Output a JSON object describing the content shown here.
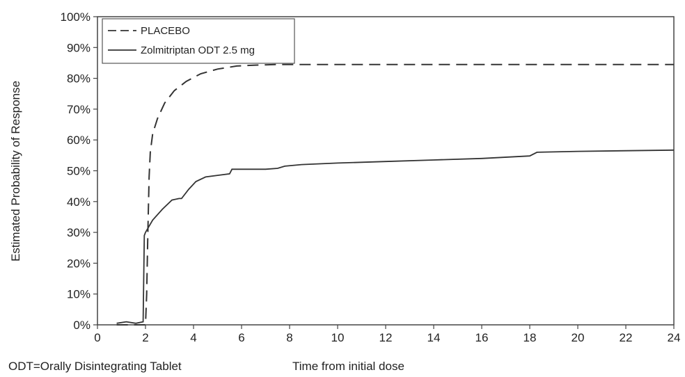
{
  "chart_data": {
    "type": "line",
    "xlabel": "Time from initial dose",
    "ylabel": "Estimated Probability of Response",
    "footnote": "ODT=Orally Disintegrating Tablet",
    "xlim": [
      0,
      24
    ],
    "ylim": [
      0,
      100
    ],
    "x_ticks": [
      "0",
      "2",
      "4",
      "6",
      "8",
      "10",
      "12",
      "14",
      "16",
      "18",
      "20",
      "22",
      "24"
    ],
    "y_ticks": [
      "0%",
      "10%",
      "20%",
      "30%",
      "40%",
      "50%",
      "60%",
      "70%",
      "80%",
      "90%",
      "100%"
    ],
    "grid": false,
    "legend_position": "top-left",
    "series": [
      {
        "name": "PLACEBO",
        "line_style": "dashed",
        "color": "#333333",
        "x": [
          0.8,
          1.5,
          2.0,
          2.05,
          2.1,
          2.15,
          2.2,
          2.3,
          2.5,
          2.8,
          3.2,
          3.7,
          4.3,
          5.0,
          5.8,
          6.6,
          7.5,
          24
        ],
        "y": [
          0,
          0,
          0,
          10,
          30,
          48,
          56,
          62,
          67,
          72,
          76,
          79,
          81.5,
          83,
          84,
          84.3,
          84.5,
          84.5
        ]
      },
      {
        "name": "Zolmitriptan ODT 2.5 mg",
        "line_style": "solid",
        "color": "#333333",
        "x": [
          0.8,
          1.2,
          1.6,
          1.9,
          1.95,
          2.0,
          2.3,
          2.7,
          3.1,
          3.4,
          3.5,
          3.8,
          4.1,
          4.5,
          5.0,
          5.5,
          5.6,
          6.0,
          7.0,
          7.5,
          7.8,
          8.5,
          10.0,
          12.0,
          14.0,
          16.0,
          18.0,
          18.3,
          20.0,
          22.0,
          24.0
        ],
        "y": [
          0.5,
          1,
          0.5,
          1,
          29,
          30,
          34,
          37.5,
          40.5,
          41,
          41,
          44,
          46.5,
          48,
          48.5,
          49,
          50.5,
          50.5,
          50.5,
          50.8,
          51.5,
          52,
          52.5,
          53,
          53.5,
          54,
          54.8,
          56,
          56.3,
          56.5,
          56.7
        ]
      }
    ]
  }
}
